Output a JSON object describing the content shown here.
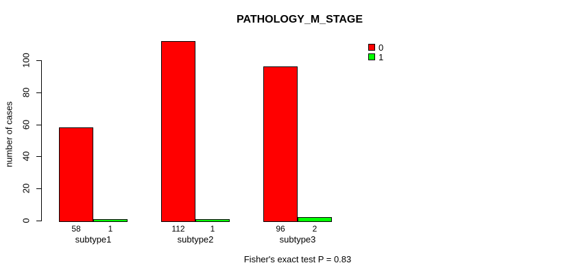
{
  "title": "PATHOLOGY_M_STAGE",
  "y_axis_label": "number of cases",
  "footer_annotation": "Fisher's exact test P = 0.83",
  "colors": {
    "series0": "#FF0000",
    "series1": "#00FF00",
    "axis": "#000000",
    "background": "#FFFFFF"
  },
  "legend": {
    "position": "top-right",
    "items": [
      {
        "label": "0",
        "color": "#FF0000"
      },
      {
        "label": "1",
        "color": "#00FF00"
      }
    ]
  },
  "chart_data": {
    "type": "bar",
    "title": "PATHOLOGY_M_STAGE",
    "xlabel": "",
    "ylabel": "number of cases",
    "categories": [
      "subtype1",
      "subtype2",
      "subtype3"
    ],
    "series": [
      {
        "name": "0",
        "color": "#FF0000",
        "values": [
          58,
          112,
          96
        ]
      },
      {
        "name": "1",
        "color": "#00FF00",
        "values": [
          1,
          1,
          2
        ]
      }
    ],
    "bar_value_labels": [
      [
        "58",
        "1"
      ],
      [
        "112",
        "1"
      ],
      [
        "96",
        "2"
      ]
    ],
    "ylim": [
      0,
      100
    ],
    "yticks": [
      0,
      20,
      40,
      60,
      80,
      100
    ],
    "grid": false,
    "legend_entries": [
      "0",
      "1"
    ],
    "annotation": "Fisher's exact test P = 0.83"
  }
}
